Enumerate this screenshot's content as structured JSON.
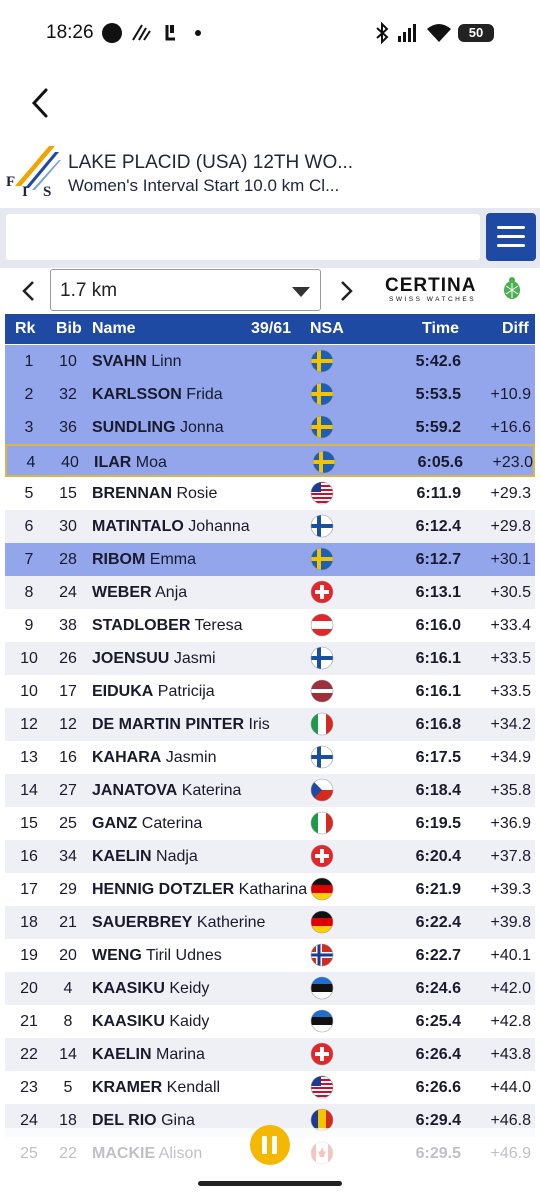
{
  "status_bar": {
    "time": "18:26",
    "battery": "50"
  },
  "header": {
    "title": "LAKE PLACID (USA) 12TH WO...",
    "subtitle": "Women's Interval Start 10.0 km Cl..."
  },
  "search": {
    "value": "",
    "placeholder": ""
  },
  "split": {
    "selected": "1.7 km"
  },
  "sponsor": {
    "brand": "CERTINA",
    "tagline": "SWISS WATCHES"
  },
  "table": {
    "headers": {
      "rank": "Rk",
      "bib": "Bib",
      "name": "Name",
      "count": "39/61",
      "nsa": "NSA",
      "time": "Time",
      "diff": "Diff"
    },
    "rows": [
      {
        "rk": "1",
        "bib": "10",
        "last": "SVAHN",
        "first": "Linn",
        "nsa": "SWE",
        "time": "5:42.6",
        "diff": "",
        "style": "hl"
      },
      {
        "rk": "2",
        "bib": "32",
        "last": "KARLSSON",
        "first": "Frida",
        "nsa": "SWE",
        "time": "5:53.5",
        "diff": "+10.9",
        "style": "hl"
      },
      {
        "rk": "3",
        "bib": "36",
        "last": "SUNDLING",
        "first": "Jonna",
        "nsa": "SWE",
        "time": "5:59.2",
        "diff": "+16.6",
        "style": "hl"
      },
      {
        "rk": "4",
        "bib": "40",
        "last": "ILAR",
        "first": "Moa",
        "nsa": "SWE",
        "time": "6:05.6",
        "diff": "+23.0",
        "style": "cur"
      },
      {
        "rk": "5",
        "bib": "15",
        "last": "BRENNAN",
        "first": "Rosie",
        "nsa": "USA",
        "time": "6:11.9",
        "diff": "+29.3",
        "style": "plain"
      },
      {
        "rk": "6",
        "bib": "30",
        "last": "MATINTALO",
        "first": "Johanna",
        "nsa": "FIN",
        "time": "6:12.4",
        "diff": "+29.8",
        "style": "alt"
      },
      {
        "rk": "7",
        "bib": "28",
        "last": "RIBOM",
        "first": "Emma",
        "nsa": "SWE",
        "time": "6:12.7",
        "diff": "+30.1",
        "style": "hl"
      },
      {
        "rk": "8",
        "bib": "24",
        "last": "WEBER",
        "first": "Anja",
        "nsa": "SUI",
        "time": "6:13.1",
        "diff": "+30.5",
        "style": "alt"
      },
      {
        "rk": "9",
        "bib": "38",
        "last": "STADLOBER",
        "first": "Teresa",
        "nsa": "AUT",
        "time": "6:16.0",
        "diff": "+33.4",
        "style": "plain"
      },
      {
        "rk": "10",
        "bib": "26",
        "last": "JOENSUU",
        "first": "Jasmi",
        "nsa": "FIN",
        "time": "6:16.1",
        "diff": "+33.5",
        "style": "alt"
      },
      {
        "rk": "10",
        "bib": "17",
        "last": "EIDUKA",
        "first": "Patricija",
        "nsa": "LAT",
        "time": "6:16.1",
        "diff": "+33.5",
        "style": "plain"
      },
      {
        "rk": "12",
        "bib": "12",
        "last": "DE MARTIN PINTER",
        "first": "Iris",
        "nsa": "ITA",
        "time": "6:16.8",
        "diff": "+34.2",
        "style": "alt"
      },
      {
        "rk": "13",
        "bib": "16",
        "last": "KAHARA",
        "first": "Jasmin",
        "nsa": "FIN",
        "time": "6:17.5",
        "diff": "+34.9",
        "style": "plain"
      },
      {
        "rk": "14",
        "bib": "27",
        "last": "JANATOVA",
        "first": "Katerina",
        "nsa": "CZE",
        "time": "6:18.4",
        "diff": "+35.8",
        "style": "alt"
      },
      {
        "rk": "15",
        "bib": "25",
        "last": "GANZ",
        "first": "Caterina",
        "nsa": "ITA",
        "time": "6:19.5",
        "diff": "+36.9",
        "style": "plain"
      },
      {
        "rk": "16",
        "bib": "34",
        "last": "KAELIN",
        "first": "Nadja",
        "nsa": "SUI",
        "time": "6:20.4",
        "diff": "+37.8",
        "style": "alt"
      },
      {
        "rk": "17",
        "bib": "29",
        "last": "HENNIG DOTZLER",
        "first": "Katharina",
        "nsa": "GER",
        "time": "6:21.9",
        "diff": "+39.3",
        "style": "plain"
      },
      {
        "rk": "18",
        "bib": "21",
        "last": "SAUERBREY",
        "first": "Katherine",
        "nsa": "GER",
        "time": "6:22.4",
        "diff": "+39.8",
        "style": "alt"
      },
      {
        "rk": "19",
        "bib": "20",
        "last": "WENG",
        "first": "Tiril Udnes",
        "nsa": "NOR",
        "time": "6:22.7",
        "diff": "+40.1",
        "style": "plain"
      },
      {
        "rk": "20",
        "bib": "4",
        "last": "KAASIKU",
        "first": "Keidy",
        "nsa": "EST",
        "time": "6:24.6",
        "diff": "+42.0",
        "style": "alt"
      },
      {
        "rk": "21",
        "bib": "8",
        "last": "KAASIKU",
        "first": "Kaidy",
        "nsa": "EST",
        "time": "6:25.4",
        "diff": "+42.8",
        "style": "plain"
      },
      {
        "rk": "22",
        "bib": "14",
        "last": "KAELIN",
        "first": "Marina",
        "nsa": "SUI",
        "time": "6:26.4",
        "diff": "+43.8",
        "style": "alt"
      },
      {
        "rk": "23",
        "bib": "5",
        "last": "KRAMER",
        "first": "Kendall",
        "nsa": "USA",
        "time": "6:26.6",
        "diff": "+44.0",
        "style": "plain"
      },
      {
        "rk": "24",
        "bib": "18",
        "last": "DEL RIO",
        "first": "Gina",
        "nsa": "AND",
        "time": "6:29.4",
        "diff": "+46.8",
        "style": "alt"
      },
      {
        "rk": "25",
        "bib": "22",
        "last": "MACKIE",
        "first": "Alison",
        "nsa": "CAN",
        "time": "6:29.5",
        "diff": "+46.9",
        "style": "plain"
      }
    ]
  },
  "controls": {
    "pause": "pause"
  },
  "colors": {
    "header_blue": "#1f4aa3",
    "highlight": "#93a6ec",
    "current_border": "#d8b64a",
    "pause_yellow": "#f5b800"
  }
}
